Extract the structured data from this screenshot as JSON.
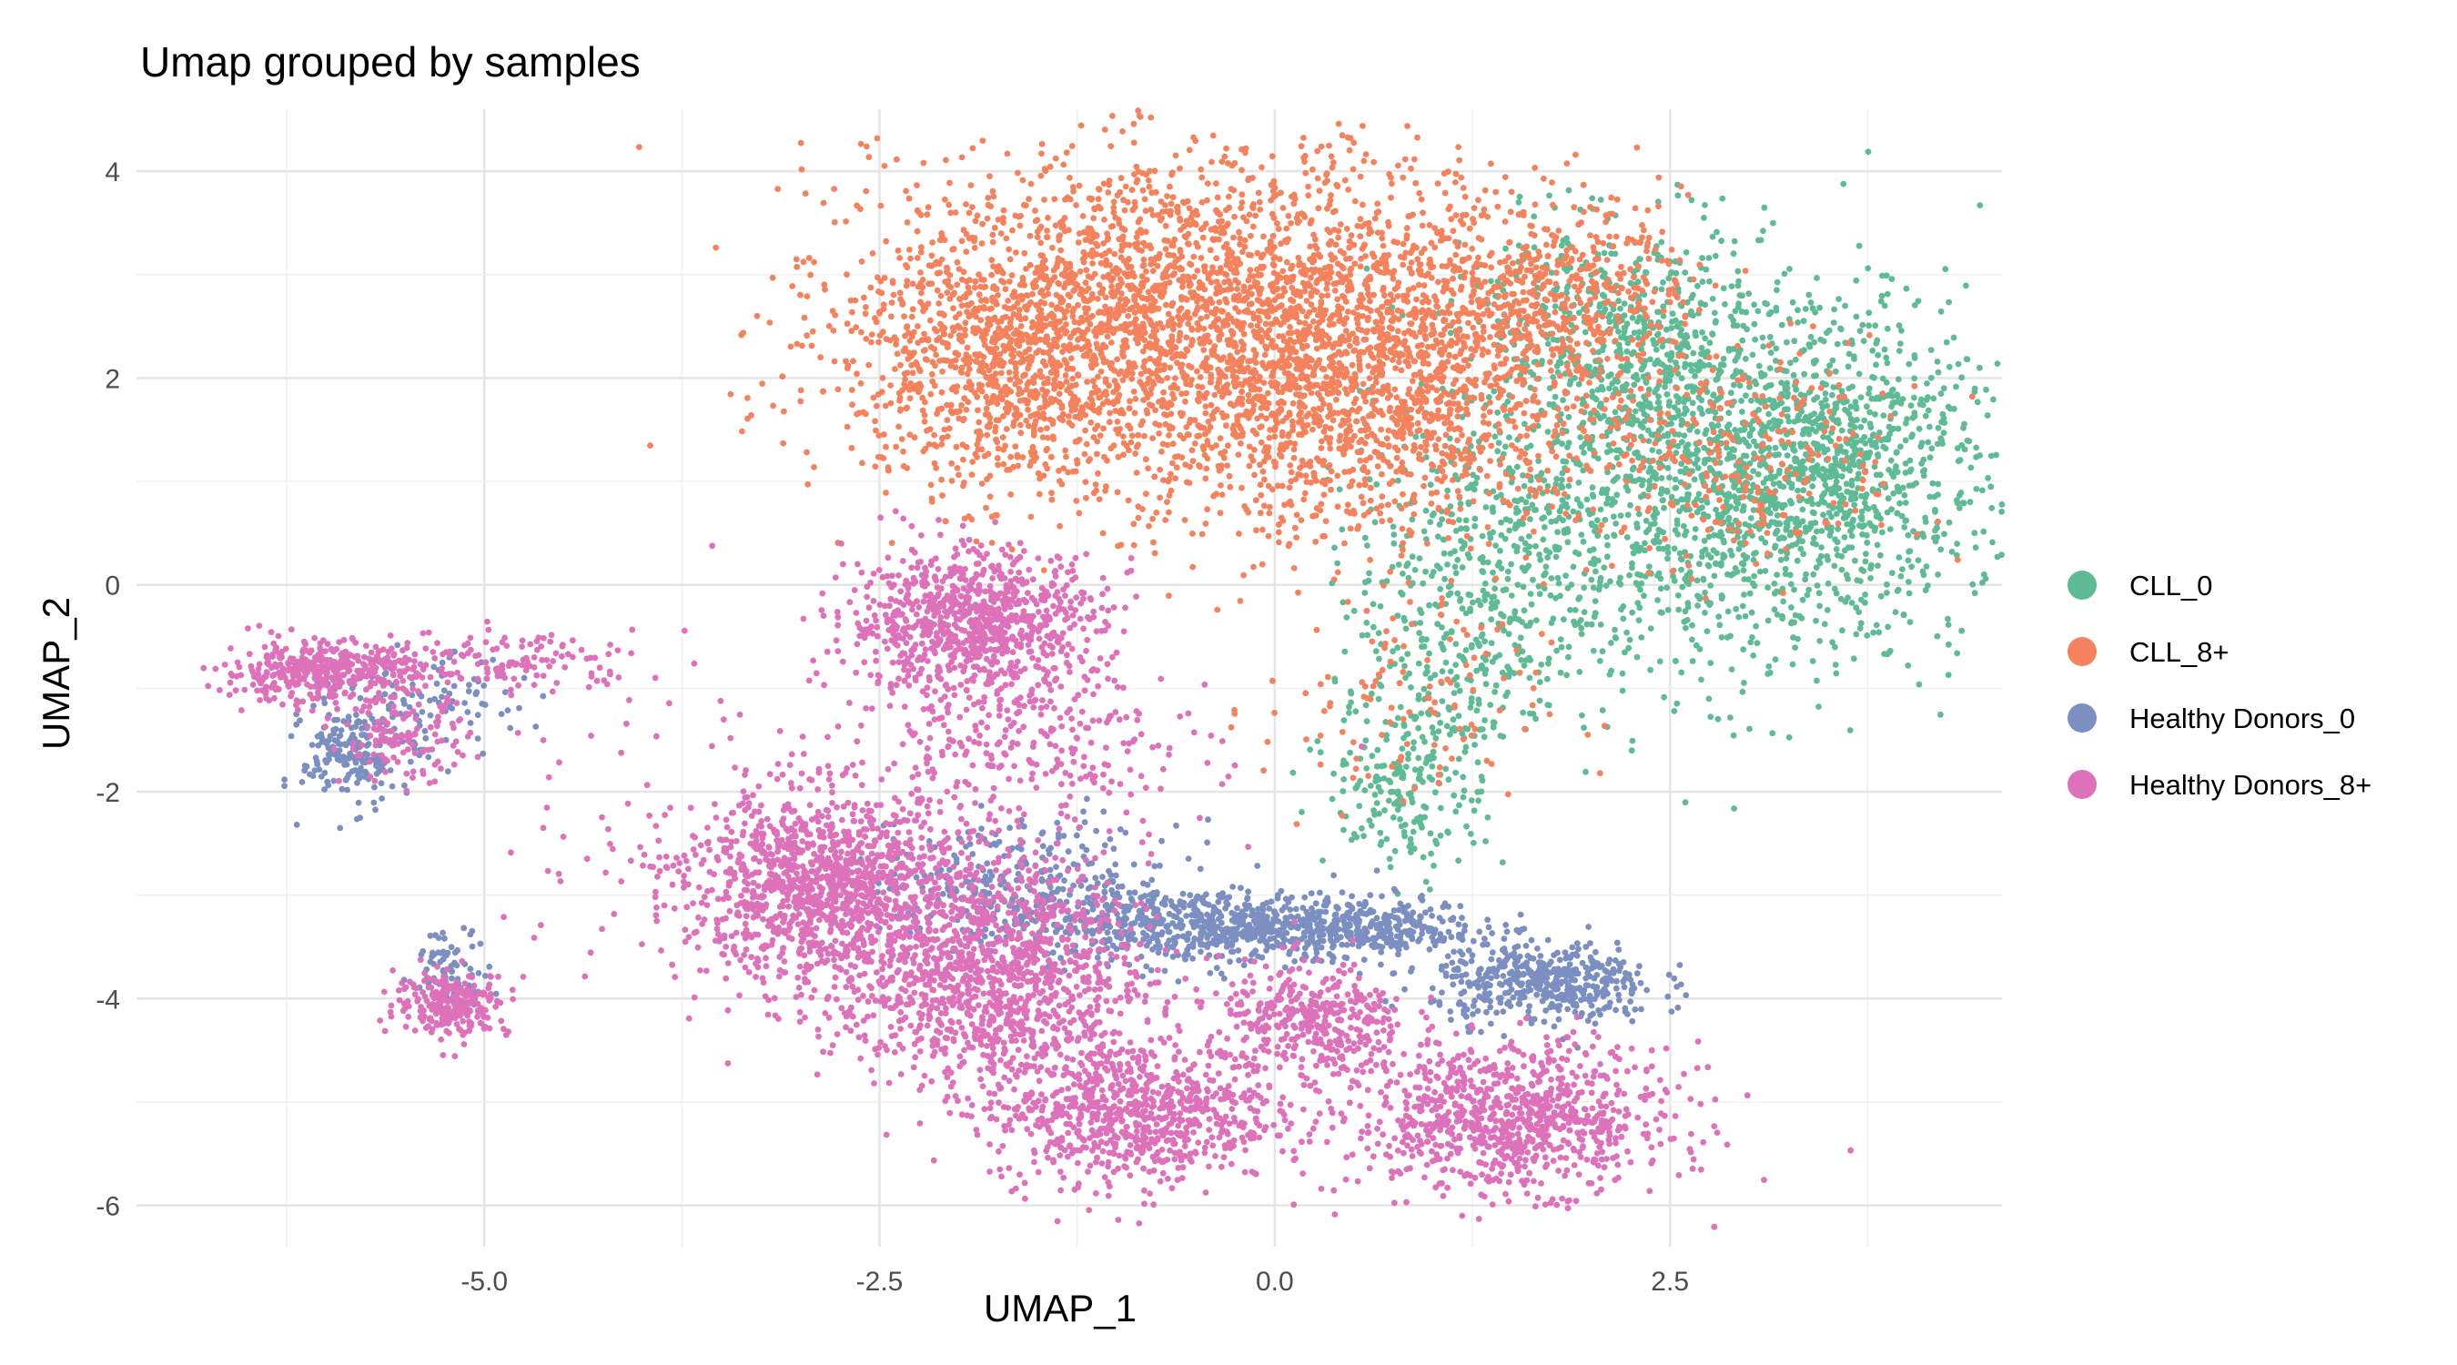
{
  "chart_data": {
    "type": "scatter",
    "title": "Umap grouped by samples",
    "xlabel": "UMAP_1",
    "ylabel": "UMAP_2",
    "xlim": [
      -7.2,
      4.6
    ],
    "ylim": [
      -6.4,
      4.6
    ],
    "x_ticks": [
      -5.0,
      -2.5,
      0.0,
      2.5
    ],
    "x_tick_labels": [
      "-5.0",
      "-2.5",
      "0.0",
      "2.5"
    ],
    "y_ticks": [
      -6,
      -4,
      -2,
      0,
      2,
      4
    ],
    "y_tick_labels": [
      "-6",
      "-4",
      "-2",
      "0",
      "2",
      "4"
    ],
    "grid": true,
    "legend_position": "right",
    "series": [
      {
        "name": "CLL_0",
        "color": "#5fbb96",
        "clusters": [
          {
            "cx": 2.85,
            "cy": 1.05,
            "sx": 0.75,
            "sy": 0.95,
            "n": 1600
          },
          {
            "cx": 2.1,
            "cy": 2.4,
            "sx": 0.5,
            "sy": 0.55,
            "n": 450
          },
          {
            "cx": 3.6,
            "cy": 1.1,
            "sx": 0.45,
            "sy": 0.6,
            "n": 500
          },
          {
            "cx": 1.3,
            "cy": 0.4,
            "sx": 0.4,
            "sy": 0.55,
            "n": 300
          },
          {
            "cx": 0.85,
            "cy": -1.9,
            "sx": 0.25,
            "sy": 0.45,
            "n": 220
          },
          {
            "cx": 1.2,
            "cy": -0.9,
            "sx": 0.35,
            "sy": 0.45,
            "n": 180
          }
        ]
      },
      {
        "name": "CLL_8+",
        "color": "#f4825c",
        "clusters": [
          {
            "cx": -0.3,
            "cy": 2.55,
            "sx": 1.1,
            "sy": 0.8,
            "n": 3000
          },
          {
            "cx": 0.7,
            "cy": 1.6,
            "sx": 0.7,
            "sy": 0.6,
            "n": 800
          },
          {
            "cx": -1.7,
            "cy": 2.2,
            "sx": 0.55,
            "sy": 0.65,
            "n": 800
          },
          {
            "cx": 1.8,
            "cy": 2.9,
            "sx": 0.4,
            "sy": 0.4,
            "n": 350
          },
          {
            "cx": 2.9,
            "cy": 1.2,
            "sx": 0.6,
            "sy": 0.55,
            "n": 250
          },
          {
            "cx": 0.8,
            "cy": -1.2,
            "sx": 0.45,
            "sy": 0.6,
            "n": 120
          }
        ]
      },
      {
        "name": "Healthy Donors_0",
        "color": "#7c8fc1",
        "clusters": [
          {
            "cx": -0.5,
            "cy": -3.3,
            "sx": 0.55,
            "sy": 0.18,
            "n": 600
          },
          {
            "cx": 0.5,
            "cy": -3.3,
            "sx": 0.4,
            "sy": 0.15,
            "n": 350
          },
          {
            "cx": 1.7,
            "cy": -3.85,
            "sx": 0.35,
            "sy": 0.2,
            "n": 450
          },
          {
            "cx": -1.6,
            "cy": -2.9,
            "sx": 0.5,
            "sy": 0.3,
            "n": 300
          },
          {
            "cx": -5.85,
            "cy": -1.65,
            "sx": 0.15,
            "sy": 0.25,
            "n": 180
          },
          {
            "cx": -5.4,
            "cy": -1.2,
            "sx": 0.3,
            "sy": 0.25,
            "n": 120
          },
          {
            "cx": -5.2,
            "cy": -3.7,
            "sx": 0.12,
            "sy": 0.18,
            "n": 80
          }
        ]
      },
      {
        "name": "Healthy Donors_8+",
        "color": "#de72ba",
        "clusters": [
          {
            "cx": -1.9,
            "cy": -0.35,
            "sx": 0.4,
            "sy": 0.35,
            "n": 900
          },
          {
            "cx": -2.85,
            "cy": -2.9,
            "sx": 0.45,
            "sy": 0.45,
            "n": 1200
          },
          {
            "cx": -1.8,
            "cy": -3.8,
            "sx": 0.5,
            "sy": 0.55,
            "n": 1200
          },
          {
            "cx": -0.9,
            "cy": -5.1,
            "sx": 0.45,
            "sy": 0.35,
            "n": 800
          },
          {
            "cx": 0.25,
            "cy": -4.25,
            "sx": 0.3,
            "sy": 0.3,
            "n": 400
          },
          {
            "cx": 1.5,
            "cy": -5.15,
            "sx": 0.5,
            "sy": 0.35,
            "n": 900
          },
          {
            "cx": -6.05,
            "cy": -0.85,
            "sx": 0.3,
            "sy": 0.15,
            "n": 400
          },
          {
            "cx": -5.2,
            "cy": -4.05,
            "sx": 0.18,
            "sy": 0.15,
            "n": 250
          },
          {
            "cx": -4.9,
            "cy": -0.75,
            "sx": 0.45,
            "sy": 0.15,
            "n": 150
          },
          {
            "cx": -5.5,
            "cy": -1.5,
            "sx": 0.2,
            "sy": 0.2,
            "n": 120
          },
          {
            "cx": -1.6,
            "cy": -1.6,
            "sx": 0.6,
            "sy": 0.45,
            "n": 300
          },
          {
            "cx": -3.8,
            "cy": -2.2,
            "sx": 0.6,
            "sy": 1.0,
            "n": 60
          }
        ]
      }
    ]
  }
}
